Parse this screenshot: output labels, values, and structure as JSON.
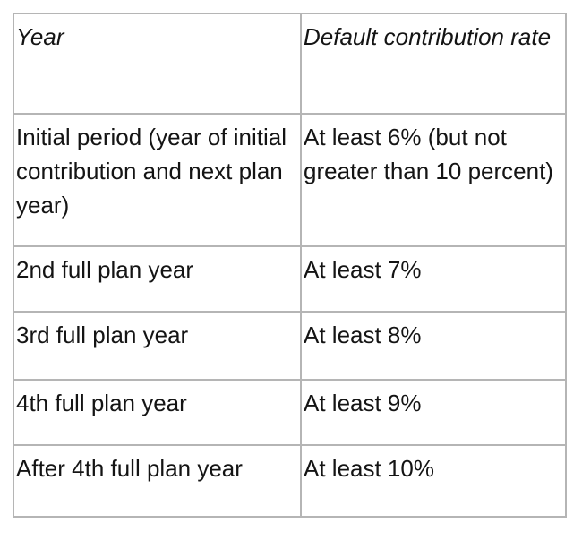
{
  "table": {
    "columns": [
      {
        "label": "Year"
      },
      {
        "label": "Default contribution rate"
      }
    ],
    "rows": [
      {
        "year": "Initial period (year of initial contribution and next plan year)",
        "rate": "At least 6% (but not greater than 10 percent)"
      },
      {
        "year": "2nd full plan year",
        "rate": "At least 7%"
      },
      {
        "year": "3rd full plan year",
        "rate": "At least 8%"
      },
      {
        "year": "4th full plan year",
        "rate": "At least 9%"
      },
      {
        "year": "After 4th full plan year",
        "rate": "At least 10%"
      }
    ],
    "style": {
      "border_color": "#b5b5b5",
      "text_color": "#141414",
      "background": "#ffffff"
    }
  }
}
